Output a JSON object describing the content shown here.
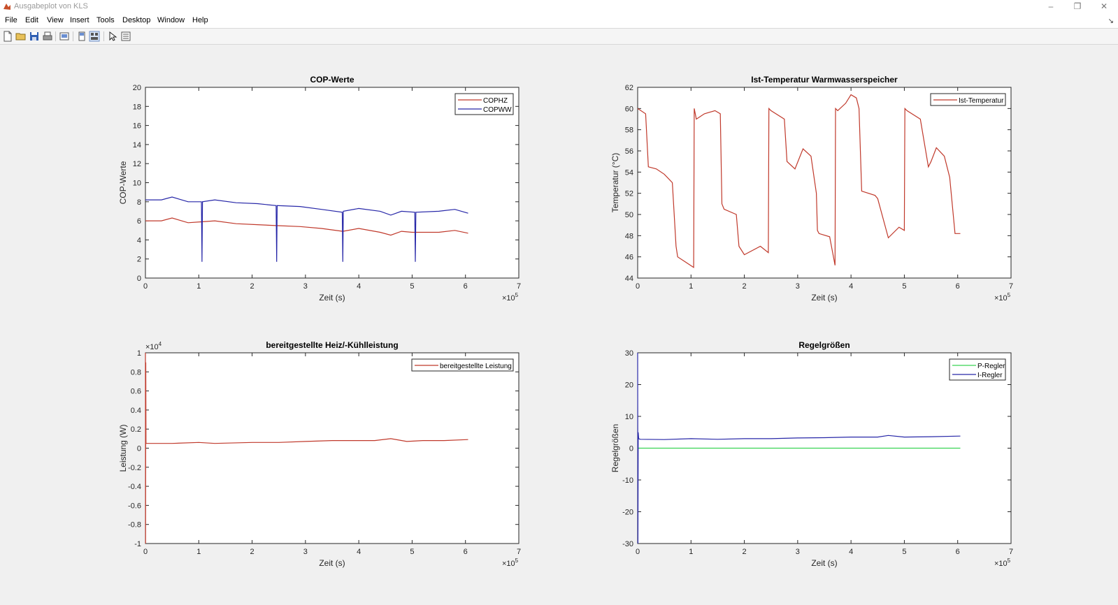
{
  "window": {
    "title": "Ausgabeplot von KLS"
  },
  "menu": [
    "File",
    "Edit",
    "View",
    "Insert",
    "Tools",
    "Desktop",
    "Window",
    "Help"
  ],
  "toolbar_icons": [
    "new-figure-icon",
    "open-file-icon",
    "save-icon",
    "print-icon",
    "print-preview-icon",
    "hide-plot-tools-icon",
    "show-plot-tools-icon",
    "edit-plot-cursor-icon",
    "property-inspector-icon"
  ],
  "axes": [
    {
      "title": "COP-Werte",
      "xlabel": "Zeit (s)",
      "ylabel": "COP-Werte",
      "ymin": 0,
      "ymax": 20,
      "yticks": [
        "0",
        "2",
        "4",
        "6",
        "8",
        "10",
        "12",
        "14",
        "16",
        "18",
        "20"
      ],
      "xticks": [
        "0",
        "1",
        "2",
        "3",
        "4",
        "5",
        "6",
        "7"
      ],
      "xexp": "×10",
      "xexp_power": "5",
      "yexp": "",
      "yexp_power": "",
      "legend": [
        "COPHZ",
        "COPWW"
      ]
    },
    {
      "title": "Ist-Temperatur Warmwasserspeicher",
      "xlabel": "Zeit (s)",
      "ylabel": "Temperatur (°C)",
      "ymin": 44,
      "ymax": 62,
      "yticks": [
        "44",
        "46",
        "48",
        "50",
        "52",
        "54",
        "56",
        "58",
        "60",
        "62"
      ],
      "xticks": [
        "0",
        "1",
        "2",
        "3",
        "4",
        "5",
        "6",
        "7"
      ],
      "xexp": "×10",
      "xexp_power": "5",
      "yexp": "",
      "yexp_power": "",
      "legend": [
        "Ist-Temperatur"
      ]
    },
    {
      "title": "bereitgestellte Heiz/-Kühlleistung",
      "xlabel": "Zeit (s)",
      "ylabel": "Leistung (W)",
      "ymin": -1,
      "ymax": 1,
      "yticks": [
        "-1",
        "-0.8",
        "-0.6",
        "-0.4",
        "-0.2",
        "0",
        "0.2",
        "0.4",
        "0.6",
        "0.8",
        "1"
      ],
      "xticks": [
        "0",
        "1",
        "2",
        "3",
        "4",
        "5",
        "6",
        "7"
      ],
      "xexp": "×10",
      "xexp_power": "5",
      "yexp": "×10",
      "yexp_power": "4",
      "legend": [
        "bereitgestellte Leistung"
      ]
    },
    {
      "title": "Regelgrößen",
      "xlabel": "Zeit (s)",
      "ylabel": "Regelgrößen",
      "ymin": -30,
      "ymax": 30,
      "yticks": [
        "-30",
        "-20",
        "-10",
        "0",
        "10",
        "20",
        "30"
      ],
      "xticks": [
        "0",
        "1",
        "2",
        "3",
        "4",
        "5",
        "6",
        "7"
      ],
      "xexp": "×10",
      "xexp_power": "5",
      "yexp": "",
      "yexp_power": "",
      "legend": [
        "P-Regler",
        "I-Regler"
      ]
    }
  ],
  "chart_data": [
    {
      "type": "line",
      "title": "COP-Werte",
      "xlabel": "Zeit (s)",
      "ylabel": "COP-Werte",
      "x_scale": "x 10^5",
      "xlim": [
        0,
        7
      ],
      "ylim": [
        0,
        20
      ],
      "legend_position": "top-right",
      "series": [
        {
          "name": "COPHZ",
          "color": "#c0392b",
          "x": [
            0,
            0.3,
            0.5,
            0.8,
            1.05,
            1.3,
            1.7,
            2.1,
            2.45,
            2.9,
            3.3,
            3.7,
            4.0,
            4.4,
            4.6,
            4.8,
            5.0,
            5.5,
            5.8,
            6.05
          ],
          "y": [
            6.0,
            6.0,
            6.3,
            5.8,
            5.9,
            6.0,
            5.7,
            5.6,
            5.5,
            5.4,
            5.2,
            4.9,
            5.2,
            4.8,
            4.5,
            4.9,
            4.8,
            4.8,
            5.0,
            4.7
          ]
        },
        {
          "name": "COPWW",
          "color": "#2727a8",
          "x": [
            0,
            0.3,
            0.5,
            0.8,
            1.05,
            1.06,
            1.07,
            1.3,
            1.7,
            2.1,
            2.45,
            2.46,
            2.47,
            2.9,
            3.3,
            3.69,
            3.7,
            3.71,
            4.0,
            4.4,
            4.6,
            4.8,
            5.05,
            5.06,
            5.07,
            5.5,
            5.8,
            6.05
          ],
          "y": [
            8.2,
            8.2,
            8.5,
            8.0,
            8.0,
            1.7,
            8.0,
            8.2,
            7.9,
            7.8,
            7.6,
            1.7,
            7.6,
            7.5,
            7.2,
            6.9,
            1.7,
            7.0,
            7.3,
            7.0,
            6.6,
            7.0,
            6.9,
            1.7,
            6.9,
            7.0,
            7.2,
            6.8
          ]
        }
      ]
    },
    {
      "type": "line",
      "title": "Ist-Temperatur Warmwasserspeicher",
      "xlabel": "Zeit (s)",
      "ylabel": "Temperatur (°C)",
      "x_scale": "x 10^5",
      "xlim": [
        0,
        7
      ],
      "ylim": [
        44,
        62
      ],
      "legend_position": "top-right",
      "series": [
        {
          "name": "Ist-Temperatur",
          "color": "#c0392b",
          "x": [
            0,
            0.15,
            0.2,
            0.35,
            0.5,
            0.65,
            0.72,
            0.75,
            0.9,
            1.05,
            1.06,
            1.1,
            1.25,
            1.45,
            1.55,
            1.58,
            1.62,
            1.85,
            1.9,
            2.0,
            2.3,
            2.45,
            2.46,
            2.5,
            2.75,
            2.8,
            2.95,
            3.1,
            3.25,
            3.35,
            3.37,
            3.4,
            3.6,
            3.7,
            3.71,
            3.75,
            3.9,
            4.0,
            4.1,
            4.15,
            4.2,
            4.45,
            4.5,
            4.7,
            4.9,
            5.0,
            5.01,
            5.05,
            5.3,
            5.45,
            5.5,
            5.6,
            5.75,
            5.85,
            5.95,
            6.05
          ],
          "y": [
            60,
            59.5,
            54.5,
            54.3,
            53.8,
            53.0,
            47,
            46,
            45.5,
            45.0,
            60,
            59,
            59.5,
            59.8,
            59.5,
            51,
            50.5,
            50,
            47,
            46.2,
            47,
            46.4,
            60,
            59.8,
            59,
            55,
            54.3,
            56.2,
            55.5,
            52,
            48.5,
            48.2,
            47.9,
            45.2,
            60,
            59.8,
            60.5,
            61.3,
            61.0,
            60.0,
            52.2,
            51.8,
            51.5,
            47.8,
            48.8,
            48.5,
            60,
            59.8,
            59,
            54.5,
            55.0,
            56.3,
            55.5,
            53.5,
            48.2,
            48.2
          ]
        }
      ]
    },
    {
      "type": "line",
      "title": "bereitgestellte Heiz/-Kühlleistung",
      "xlabel": "Zeit (s)",
      "ylabel": "Leistung (W)",
      "x_scale": "x 10^5",
      "y_scale": "x 10^4",
      "xlim": [
        0,
        7
      ],
      "ylim": [
        -1,
        1
      ],
      "legend_position": "top-right",
      "series": [
        {
          "name": "bereitgestellte Leistung",
          "color": "#c0392b",
          "x": [
            0,
            0.003,
            0.006,
            0.01,
            0.05,
            0.5,
            1.0,
            1.3,
            2.0,
            2.5,
            3.0,
            3.5,
            4.0,
            4.3,
            4.6,
            4.9,
            5.2,
            5.6,
            6.05
          ],
          "y": [
            1.0,
            -1.0,
            0.9,
            0.05,
            0.05,
            0.05,
            0.06,
            0.05,
            0.06,
            0.06,
            0.07,
            0.08,
            0.08,
            0.08,
            0.1,
            0.07,
            0.08,
            0.08,
            0.09
          ]
        }
      ]
    },
    {
      "type": "line",
      "title": "Regelgrößen",
      "xlabel": "Zeit (s)",
      "ylabel": "Regelgrößen",
      "x_scale": "x 10^5",
      "xlim": [
        0,
        7
      ],
      "ylim": [
        -30,
        30
      ],
      "legend_position": "top-right",
      "series": [
        {
          "name": "P-Regler",
          "color": "#39d353",
          "x": [
            0,
            6.05
          ],
          "y": [
            0,
            0
          ]
        },
        {
          "name": "I-Regler",
          "color": "#2727a8",
          "x": [
            0,
            0.005,
            0.01,
            0.02,
            0.05,
            0.5,
            1.0,
            1.5,
            2.0,
            2.5,
            3.0,
            3.5,
            4.0,
            4.5,
            4.7,
            5.0,
            5.5,
            6.05
          ],
          "y": [
            30,
            -30,
            5,
            3,
            2.8,
            2.7,
            3.0,
            2.8,
            3.0,
            3.0,
            3.2,
            3.3,
            3.5,
            3.5,
            4.0,
            3.5,
            3.6,
            3.8
          ]
        }
      ]
    }
  ]
}
